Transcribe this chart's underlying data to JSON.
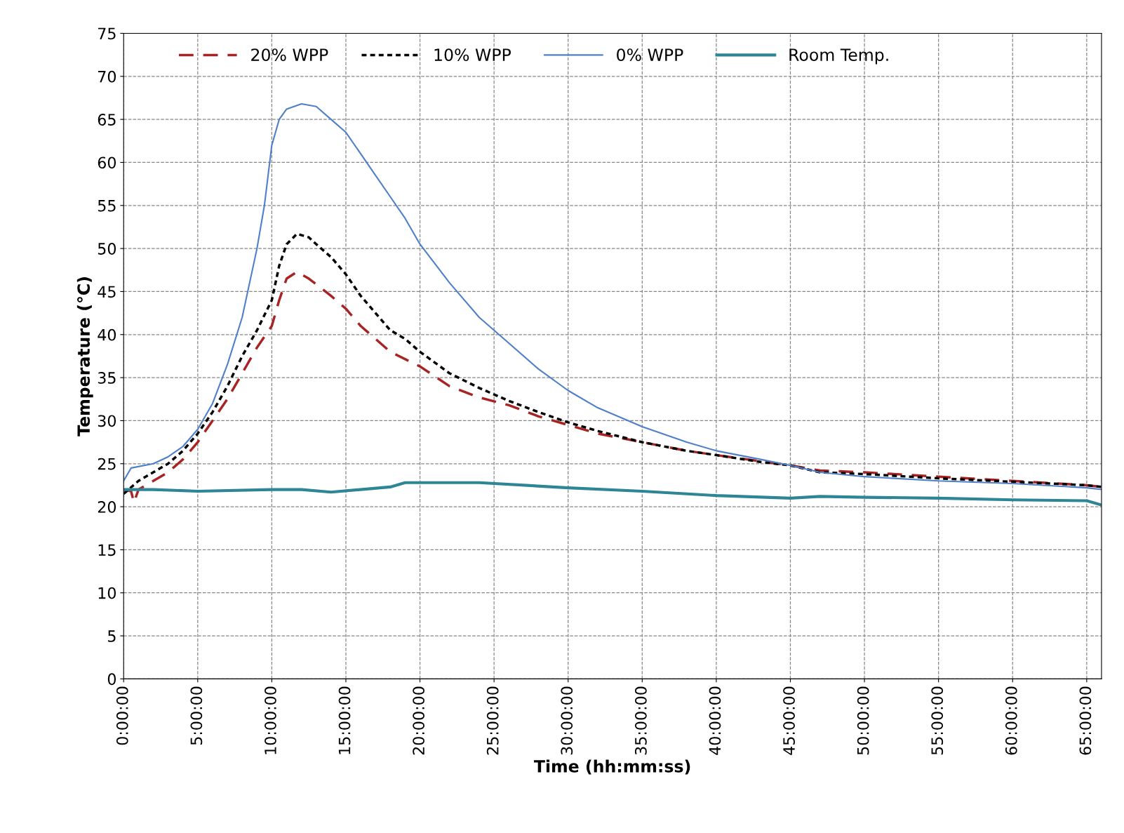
{
  "chart_data": {
    "type": "line",
    "xlabel": "Time (hh:mm:ss)",
    "ylabel": "Temperature (°C)",
    "xlim": [
      0,
      66
    ],
    "ylim": [
      0,
      75
    ],
    "xticks": [
      {
        "value": 0,
        "label": "0:00:00"
      },
      {
        "value": 5,
        "label": "5:00:00"
      },
      {
        "value": 10,
        "label": "10:00:00"
      },
      {
        "value": 15,
        "label": "15:00:00"
      },
      {
        "value": 20,
        "label": "20:00:00"
      },
      {
        "value": 25,
        "label": "25:00:00"
      },
      {
        "value": 30,
        "label": "30:00:00"
      },
      {
        "value": 35,
        "label": "35:00:00"
      },
      {
        "value": 40,
        "label": "40:00:00"
      },
      {
        "value": 45,
        "label": "45:00:00"
      },
      {
        "value": 50,
        "label": "50:00:00"
      },
      {
        "value": 55,
        "label": "55:00:00"
      },
      {
        "value": 60,
        "label": "60:00:00"
      },
      {
        "value": 65,
        "label": "65:00:00"
      }
    ],
    "yticks": [
      0,
      5,
      10,
      15,
      20,
      25,
      30,
      35,
      40,
      45,
      50,
      55,
      60,
      65,
      70,
      75
    ],
    "grid": true,
    "legend": "top",
    "series": [
      {
        "name": "20% WPP",
        "color": "#a82424",
        "line_style": "dashed",
        "x": [
          0,
          0.5,
          0.7,
          1,
          2,
          3,
          4,
          5,
          6,
          7,
          8,
          9,
          10,
          10.5,
          11,
          11.7,
          12.5,
          14,
          15,
          16,
          17,
          18,
          20,
          22,
          24,
          26,
          28,
          30,
          32,
          35,
          38,
          40,
          45,
          47,
          50,
          55,
          60,
          65,
          66
        ],
        "values": [
          22,
          21.8,
          20.5,
          22,
          23,
          24,
          25.5,
          27.5,
          30,
          32.5,
          35.5,
          38.5,
          41,
          44,
          46.5,
          47.3,
          46.5,
          44.5,
          43,
          41,
          39.5,
          38,
          36.3,
          34,
          32.7,
          31.8,
          30.5,
          29.5,
          28.5,
          27.5,
          26.5,
          26,
          24.8,
          24.2,
          24,
          23.5,
          23,
          22.5,
          22.3
        ]
      },
      {
        "name": "10% WPP",
        "color": "#000000",
        "line_style": "dotted",
        "x": [
          0,
          1,
          2,
          3,
          4,
          5,
          6,
          7,
          8,
          9,
          10,
          10.5,
          11,
          11.7,
          12.5,
          13,
          14,
          15,
          16,
          17,
          18,
          19,
          20,
          22,
          24,
          26,
          28,
          30,
          32,
          35,
          38,
          40,
          43,
          45,
          47,
          50,
          55,
          60,
          65,
          66
        ],
        "values": [
          21.5,
          23,
          24,
          25,
          26.5,
          28.5,
          31,
          34,
          37.5,
          40.5,
          44,
          48,
          50.5,
          51.7,
          51.3,
          50.5,
          49,
          47,
          44.5,
          42.5,
          40.5,
          39.5,
          38,
          35.5,
          33.8,
          32.3,
          31,
          29.8,
          28.8,
          27.5,
          26.5,
          26,
          25.2,
          24.8,
          24,
          23.8,
          23.3,
          22.9,
          22.5,
          22.3
        ]
      },
      {
        "name": "0% WPP",
        "color": "#4f7fc9",
        "line_style": "solid",
        "x": [
          0,
          0.5,
          2,
          3,
          4,
          5,
          6,
          7,
          8,
          9,
          9.5,
          10,
          10.5,
          11,
          12,
          13,
          14,
          15,
          16,
          17,
          18,
          19,
          20,
          22,
          24,
          26,
          28,
          30,
          32,
          35,
          38,
          40,
          43,
          45,
          47,
          50,
          55,
          60,
          65,
          66
        ],
        "values": [
          23,
          24.5,
          25,
          25.8,
          27,
          29,
          32,
          36.5,
          42,
          50,
          55,
          62,
          65,
          66.2,
          66.8,
          66.5,
          65,
          63.5,
          61,
          58.5,
          56,
          53.5,
          50.5,
          46,
          42,
          39,
          36,
          33.5,
          31.5,
          29.3,
          27.5,
          26.5,
          25.5,
          24.8,
          24,
          23.5,
          23,
          22.7,
          22.2,
          22
        ]
      },
      {
        "name": "Room Temp.",
        "color": "#2e8595",
        "line_style": "solid",
        "x": [
          0,
          2,
          5,
          10,
          12,
          14,
          18,
          19,
          24,
          30,
          35,
          40,
          45,
          47,
          50,
          55,
          60,
          65,
          66
        ],
        "values": [
          22,
          22,
          21.8,
          22,
          22,
          21.7,
          22.3,
          22.8,
          22.8,
          22.2,
          21.8,
          21.3,
          21,
          21.2,
          21.1,
          21,
          20.8,
          20.7,
          20.2
        ]
      }
    ]
  }
}
